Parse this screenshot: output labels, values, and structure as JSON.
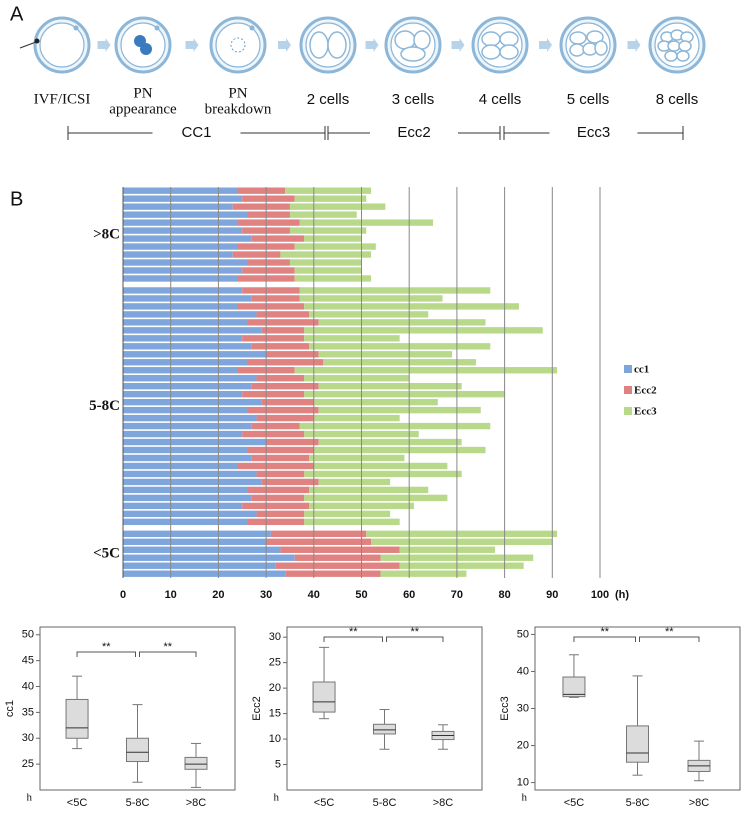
{
  "panel_a": {
    "label": "A",
    "stages": [
      {
        "lines": [
          "IVF/ICSI"
        ]
      },
      {
        "lines": [
          "PN",
          "appearance"
        ]
      },
      {
        "lines": [
          "PN",
          "breakdown"
        ]
      },
      {
        "lines": [
          "2 cells"
        ]
      },
      {
        "lines": [
          "3 cells"
        ]
      },
      {
        "lines": [
          "4 cells"
        ]
      },
      {
        "lines": [
          "5 cells"
        ]
      },
      {
        "lines": [
          "8 cells"
        ]
      }
    ],
    "phases": [
      "CC1",
      "Ecc2",
      "Ecc3"
    ]
  },
  "chart_data": [
    {
      "type": "bar",
      "orientation": "horizontal",
      "stacked": true,
      "panel_label": "B",
      "series": [
        {
          "name": "cc1",
          "color": "#7ea6dc"
        },
        {
          "name": "Ecc2",
          "color": "#e08282"
        },
        {
          "name": "Ecc3",
          "color": "#b9d98a"
        }
      ],
      "groups": [
        {
          "label": ">8C",
          "series": [
            {
              "values": [
                24,
                25,
                23,
                26,
                24,
                25,
                27,
                24,
                23,
                26,
                25,
                24
              ]
            },
            {
              "values": [
                10,
                11,
                12,
                9,
                13,
                10,
                11,
                12,
                10,
                9,
                11,
                12
              ]
            },
            {
              "values": [
                18,
                15,
                20,
                14,
                28,
                16,
                12,
                17,
                19,
                15,
                14,
                16
              ]
            }
          ]
        },
        {
          "label": "5-8C",
          "series": [
            {
              "values": [
                25,
                27,
                24,
                28,
                26,
                29,
                25,
                27,
                30,
                26,
                24,
                28,
                27,
                25,
                29,
                26,
                28,
                27,
                25,
                30,
                26,
                27,
                24,
                28,
                29,
                26,
                27,
                25,
                28,
                26
              ]
            },
            {
              "values": [
                12,
                10,
                14,
                11,
                15,
                9,
                13,
                12,
                11,
                16,
                12,
                10,
                14,
                13,
                11,
                15,
                12,
                10,
                13,
                11,
                14,
                12,
                16,
                10,
                12,
                13,
                11,
                14,
                10,
                12
              ]
            },
            {
              "values": [
                40,
                30,
                45,
                25,
                35,
                50,
                20,
                38,
                28,
                32,
                55,
                22,
                30,
                42,
                26,
                34,
                18,
                40,
                24,
                30,
                36,
                20,
                28,
                33,
                15,
                25,
                30,
                22,
                18,
                20
              ]
            }
          ]
        },
        {
          "label": "<5C",
          "series": [
            {
              "values": [
                31,
                30,
                33,
                36,
                32,
                34
              ]
            },
            {
              "values": [
                20,
                22,
                25,
                18,
                26,
                20
              ]
            },
            {
              "values": [
                40,
                38,
                20,
                32,
                26,
                18
              ]
            }
          ]
        }
      ],
      "xlim": [
        0,
        100
      ],
      "xticks": [
        0,
        10,
        20,
        30,
        40,
        50,
        60,
        70,
        80,
        90,
        100
      ],
      "x_unit": "(h)",
      "grid": true
    },
    {
      "type": "box",
      "ylabel": "cc1",
      "y_unit": "h",
      "categories": [
        "<5C",
        "5-8C",
        ">8C"
      ],
      "boxes": [
        {
          "low": 28,
          "q1": 30,
          "median": 32,
          "q3": 37.5,
          "high": 42
        },
        {
          "low": 21.5,
          "q1": 25.5,
          "median": 27.3,
          "q3": 30,
          "high": 36.5
        },
        {
          "low": 20.5,
          "q1": 24,
          "median": 25,
          "q3": 26.3,
          "high": 29
        }
      ],
      "ylim": [
        20,
        51.5
      ],
      "yticks": [
        25,
        30,
        35,
        40,
        45,
        50
      ],
      "significance_labels": [
        "**",
        "**"
      ]
    },
    {
      "type": "box",
      "ylabel": "Ecc2",
      "y_unit": "h",
      "categories": [
        "<5C",
        "5-8C",
        ">8C"
      ],
      "boxes": [
        {
          "low": 14,
          "q1": 15.3,
          "median": 17.3,
          "q3": 21.2,
          "high": 28
        },
        {
          "low": 8,
          "q1": 11,
          "median": 11.8,
          "q3": 12.9,
          "high": 15.8
        },
        {
          "low": 8,
          "q1": 9.9,
          "median": 10.7,
          "q3": 11.5,
          "high": 12.8
        }
      ],
      "ylim": [
        0,
        32
      ],
      "yticks": [
        5,
        10,
        15,
        20,
        25,
        30
      ],
      "significance_labels": [
        "**",
        "**"
      ]
    },
    {
      "type": "box",
      "ylabel": "Ecc3",
      "y_unit": "h",
      "categories": [
        "<5C",
        "5-8C",
        ">8C"
      ],
      "boxes": [
        {
          "low": 33,
          "q1": 33.2,
          "median": 33.8,
          "q3": 38.5,
          "high": 44.5
        },
        {
          "low": 12,
          "q1": 15.5,
          "median": 18,
          "q3": 25.3,
          "high": 38.8
        },
        {
          "low": 10.5,
          "q1": 13,
          "median": 14.5,
          "q3": 16,
          "high": 21.2
        }
      ],
      "ylim": [
        8,
        52
      ],
      "yticks": [
        10,
        20,
        30,
        40,
        50
      ],
      "significance_labels": [
        "**",
        "**"
      ]
    }
  ]
}
